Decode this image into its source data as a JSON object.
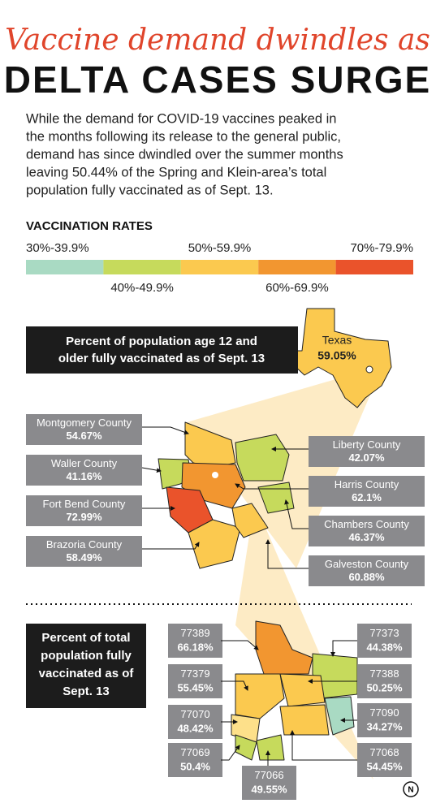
{
  "title": {
    "line1": "Vaccine demand dwindles as",
    "line2": "DELTA CASES SURGE"
  },
  "intro": [
    "While the demand for COVID-19 vaccines peaked in",
    "the months following its release to the general public,",
    "demand has since dwindled over the summer months",
    "leaving 50.44% of the Spring and Klein-area’s total",
    "population fully vaccinated as of Sept. 13."
  ],
  "legend": {
    "title": "VACCINATION RATES",
    "ranges": [
      {
        "label": "30%-39.9%",
        "color": "#a9dac3"
      },
      {
        "label": "40%-49.9%",
        "color": "#c6da5c"
      },
      {
        "label": "50%-59.9%",
        "color": "#fbc94f"
      },
      {
        "label": "60%-69.9%",
        "color": "#f29630"
      },
      {
        "label": "70%-79.9%",
        "color": "#ea532b"
      }
    ]
  },
  "county_panel": {
    "heading": [
      "Percent of population age 12 and",
      "older fully vaccinated as of Sept. 13"
    ],
    "state": {
      "name": "Texas",
      "rate": "59.05%"
    },
    "counties": [
      {
        "name": "Montgomery County",
        "rate": "54.67%"
      },
      {
        "name": "Waller County",
        "rate": "41.16%"
      },
      {
        "name": "Fort Bend County",
        "rate": "72.99%"
      },
      {
        "name": "Brazoria County",
        "rate": "58.49%"
      },
      {
        "name": "Liberty County",
        "rate": "42.07%"
      },
      {
        "name": "Harris County",
        "rate": "62.1%"
      },
      {
        "name": "Chambers County",
        "rate": "46.37%"
      },
      {
        "name": "Galveston County",
        "rate": "60.88%"
      }
    ]
  },
  "zip_panel": {
    "heading": [
      "Percent of total",
      "population fully",
      "vaccinated as of",
      "Sept. 13"
    ],
    "zips": [
      {
        "code": "77389",
        "rate": "66.18%"
      },
      {
        "code": "77379",
        "rate": "55.45%"
      },
      {
        "code": "77070",
        "rate": "48.42%"
      },
      {
        "code": "77069",
        "rate": "50.4%"
      },
      {
        "code": "77066",
        "rate": "49.55%"
      },
      {
        "code": "77373",
        "rate": "44.38%"
      },
      {
        "code": "77388",
        "rate": "50.25%"
      },
      {
        "code": "77090",
        "rate": "34.27%"
      },
      {
        "code": "77068",
        "rate": "54.45%"
      }
    ]
  },
  "logo": "N"
}
